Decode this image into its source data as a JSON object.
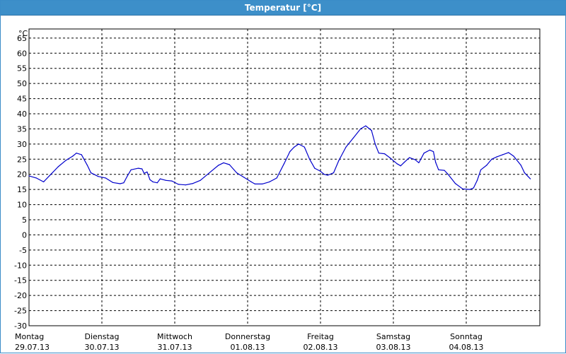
{
  "window": {
    "title": "Temperatur [°C]"
  },
  "colors": {
    "title_bg": "#3d8fc9",
    "title_text": "#ffffff",
    "line": "#0000cc",
    "grid": "#000000"
  },
  "chart_data": {
    "type": "line",
    "title": "Temperatur [°C]",
    "ylabel": "°C",
    "ylim": [
      -30,
      68
    ],
    "y_ticks": [
      65,
      60,
      55,
      50,
      45,
      40,
      35,
      30,
      25,
      20,
      15,
      10,
      5,
      0,
      -5,
      -10,
      -15,
      -20,
      -25,
      -30
    ],
    "xlim": [
      0,
      7.05
    ],
    "grid": true,
    "x_ticks": [
      {
        "day": "Montag",
        "date": "29.07.13"
      },
      {
        "day": "Dienstag",
        "date": "30.07.13"
      },
      {
        "day": "Mittwoch",
        "date": "31.07.13"
      },
      {
        "day": "Donnerstag",
        "date": "01.08.13"
      },
      {
        "day": "Freitag",
        "date": "02.08.13"
      },
      {
        "day": "Samstag",
        "date": "03.08.13"
      },
      {
        "day": "Sonntag",
        "date": "04.08.13"
      }
    ],
    "series": [
      {
        "values": [
          [
            0.0,
            19.5
          ],
          [
            0.1,
            18.8
          ],
          [
            0.2,
            17.5
          ],
          [
            0.3,
            20.0
          ],
          [
            0.4,
            22.5
          ],
          [
            0.5,
            24.5
          ],
          [
            0.6,
            26.0
          ],
          [
            0.65,
            27.0
          ],
          [
            0.72,
            26.5
          ],
          [
            0.8,
            23.0
          ],
          [
            0.85,
            20.5
          ],
          [
            0.95,
            19.3
          ],
          [
            1.05,
            18.8
          ],
          [
            1.15,
            17.3
          ],
          [
            1.25,
            16.9
          ],
          [
            1.3,
            17.2
          ],
          [
            1.35,
            19.5
          ],
          [
            1.4,
            21.5
          ],
          [
            1.5,
            22.0
          ],
          [
            1.55,
            21.8
          ],
          [
            1.58,
            20.3
          ],
          [
            1.62,
            20.8
          ],
          [
            1.66,
            18.2
          ],
          [
            1.7,
            17.5
          ],
          [
            1.76,
            17.2
          ],
          [
            1.8,
            18.5
          ],
          [
            1.88,
            18.0
          ],
          [
            1.96,
            17.8
          ],
          [
            2.05,
            16.7
          ],
          [
            2.15,
            16.5
          ],
          [
            2.25,
            17.0
          ],
          [
            2.35,
            18.0
          ],
          [
            2.5,
            21.0
          ],
          [
            2.6,
            23.0
          ],
          [
            2.67,
            23.8
          ],
          [
            2.75,
            23.2
          ],
          [
            2.85,
            20.5
          ],
          [
            2.95,
            19.0
          ],
          [
            3.05,
            17.5
          ],
          [
            3.1,
            16.8
          ],
          [
            3.2,
            16.8
          ],
          [
            3.3,
            17.5
          ],
          [
            3.4,
            18.8
          ],
          [
            3.5,
            23.5
          ],
          [
            3.58,
            27.5
          ],
          [
            3.64,
            29.0
          ],
          [
            3.7,
            30.0
          ],
          [
            3.78,
            29.0
          ],
          [
            3.85,
            25.0
          ],
          [
            3.92,
            22.0
          ],
          [
            4.0,
            21.0
          ],
          [
            4.05,
            20.0
          ],
          [
            4.1,
            19.7
          ],
          [
            4.18,
            20.5
          ],
          [
            4.25,
            24.5
          ],
          [
            4.35,
            29.0
          ],
          [
            4.45,
            32.0
          ],
          [
            4.55,
            35.0
          ],
          [
            4.62,
            36.0
          ],
          [
            4.7,
            34.5
          ],
          [
            4.75,
            30.0
          ],
          [
            4.8,
            27.0
          ],
          [
            4.88,
            26.8
          ],
          [
            4.95,
            25.5
          ],
          [
            5.05,
            23.5
          ],
          [
            5.1,
            22.8
          ],
          [
            5.15,
            24.0
          ],
          [
            5.22,
            25.5
          ],
          [
            5.3,
            24.8
          ],
          [
            5.35,
            23.8
          ],
          [
            5.42,
            27.0
          ],
          [
            5.5,
            28.0
          ],
          [
            5.55,
            27.5
          ],
          [
            5.58,
            24.0
          ],
          [
            5.62,
            21.5
          ],
          [
            5.7,
            21.3
          ],
          [
            5.75,
            20.0
          ],
          [
            5.85,
            17.0
          ],
          [
            5.95,
            15.2
          ],
          [
            6.05,
            15.0
          ],
          [
            6.1,
            15.5
          ],
          [
            6.15,
            18.0
          ],
          [
            6.2,
            21.5
          ],
          [
            6.28,
            23.0
          ],
          [
            6.35,
            25.0
          ],
          [
            6.42,
            25.8
          ],
          [
            6.5,
            26.5
          ],
          [
            6.58,
            27.2
          ],
          [
            6.65,
            26.0
          ],
          [
            6.75,
            23.0
          ],
          [
            6.8,
            20.5
          ],
          [
            6.88,
            18.5
          ]
        ]
      }
    ]
  }
}
